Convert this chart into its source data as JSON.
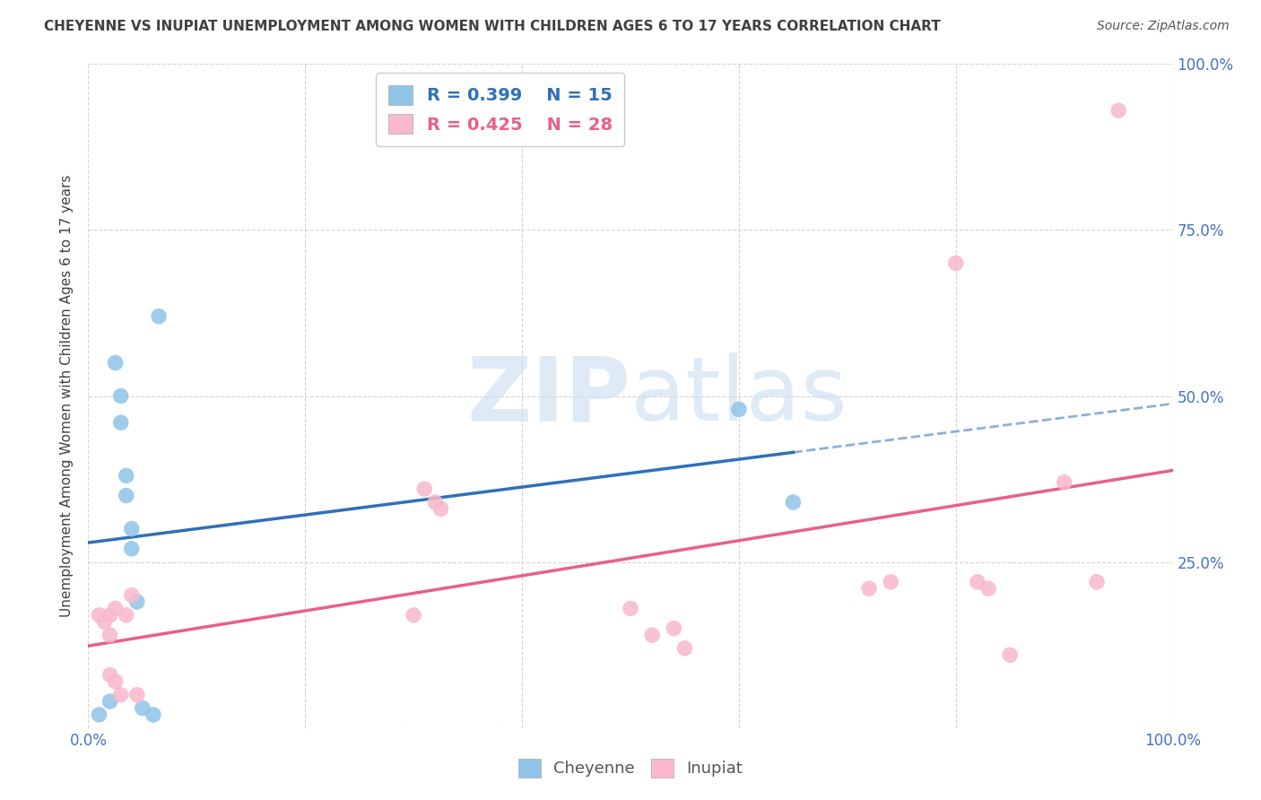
{
  "title": "CHEYENNE VS INUPIAT UNEMPLOYMENT AMONG WOMEN WITH CHILDREN AGES 6 TO 17 YEARS CORRELATION CHART",
  "source": "Source: ZipAtlas.com",
  "ylabel": "Unemployment Among Women with Children Ages 6 to 17 years",
  "xlim": [
    0,
    1.0
  ],
  "ylim": [
    0,
    1.0
  ],
  "xticks": [
    0.0,
    0.2,
    0.4,
    0.6,
    0.8,
    1.0
  ],
  "yticks": [
    0.0,
    0.25,
    0.5,
    0.75,
    1.0
  ],
  "cheyenne_x": [
    0.01,
    0.02,
    0.025,
    0.03,
    0.03,
    0.035,
    0.035,
    0.04,
    0.04,
    0.045,
    0.05,
    0.06,
    0.065,
    0.6,
    0.65
  ],
  "cheyenne_y": [
    0.02,
    0.04,
    0.55,
    0.5,
    0.46,
    0.38,
    0.35,
    0.27,
    0.3,
    0.19,
    0.03,
    0.02,
    0.62,
    0.48,
    0.34
  ],
  "inupiat_x": [
    0.01,
    0.015,
    0.02,
    0.02,
    0.02,
    0.025,
    0.025,
    0.03,
    0.035,
    0.04,
    0.045,
    0.3,
    0.31,
    0.32,
    0.325,
    0.5,
    0.52,
    0.54,
    0.55,
    0.72,
    0.74,
    0.8,
    0.82,
    0.83,
    0.85,
    0.9,
    0.93,
    0.95
  ],
  "inupiat_y": [
    0.17,
    0.16,
    0.17,
    0.14,
    0.08,
    0.18,
    0.07,
    0.05,
    0.17,
    0.2,
    0.05,
    0.17,
    0.36,
    0.34,
    0.33,
    0.18,
    0.14,
    0.15,
    0.12,
    0.21,
    0.22,
    0.7,
    0.22,
    0.21,
    0.11,
    0.37,
    0.22,
    0.93
  ],
  "cheyenne_color": "#90c4e8",
  "inupiat_color": "#f9b8cb",
  "cheyenne_line_color": "#3070b8",
  "inupiat_line_color": "#e8608a",
  "cheyenne_R": 0.399,
  "cheyenne_N": 15,
  "inupiat_R": 0.425,
  "inupiat_N": 28,
  "watermark_zip": "ZIP",
  "watermark_atlas": "atlas",
  "background_color": "#ffffff",
  "grid_color": "#d0d0d0",
  "tick_color": "#4472c4",
  "title_color": "#404040",
  "ylabel_color": "#404040"
}
